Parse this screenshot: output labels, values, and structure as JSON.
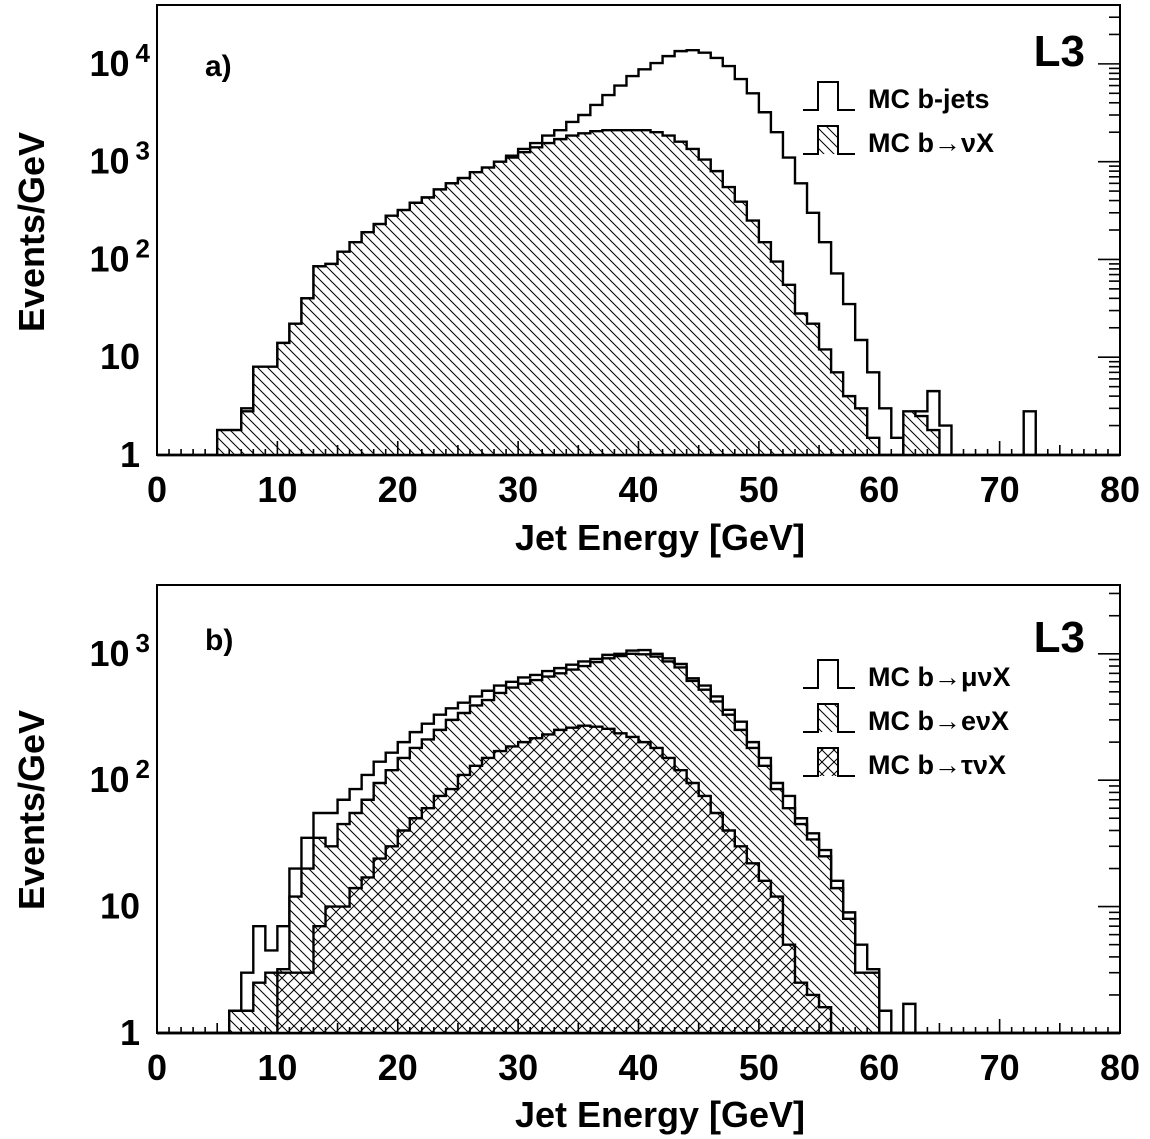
{
  "chart_data": [
    {
      "type": "histogram",
      "panel_label": "a)",
      "logo": "L3",
      "xlabel": "Jet Energy [GeV]",
      "ylabel": "Events/GeV",
      "xlim": [
        0,
        80
      ],
      "ylim": [
        1,
        40000
      ],
      "yscale": "log",
      "x_ticks": [
        0,
        10,
        20,
        30,
        40,
        50,
        60,
        70,
        80
      ],
      "y_ticks": [
        {
          "value": 1,
          "base": "1",
          "exp": ""
        },
        {
          "value": 10,
          "base": "10",
          "exp": ""
        },
        {
          "value": 100,
          "base": "10",
          "exp": "2"
        },
        {
          "value": 1000,
          "base": "10",
          "exp": "3"
        },
        {
          "value": 10000,
          "base": "10",
          "exp": "4"
        }
      ],
      "legend_position": "top-right",
      "bin_edges_start": 0,
      "bin_width": 1,
      "series": [
        {
          "name": "MC b-jets",
          "fill": "none",
          "values": [
            0,
            0,
            0,
            0,
            0,
            1.8,
            1.8,
            3,
            8,
            8,
            14,
            22,
            40,
            85,
            90,
            120,
            150,
            190,
            230,
            280,
            320,
            380,
            430,
            520,
            600,
            680,
            780,
            870,
            1000,
            1150,
            1350,
            1550,
            1850,
            2100,
            2550,
            3000,
            3800,
            4800,
            6000,
            7500,
            8800,
            10200,
            12000,
            13500,
            13800,
            13000,
            11500,
            9500,
            7000,
            5000,
            3200,
            2000,
            1100,
            600,
            300,
            150,
            72,
            35,
            15,
            7,
            3,
            1.5,
            0,
            2.8,
            4.5,
            2,
            0,
            0,
            0,
            0,
            0,
            0,
            2.8,
            0,
            0,
            0,
            0,
            0,
            0,
            0
          ]
        },
        {
          "name": "MC b→νX",
          "fill": "hatch",
          "values": [
            0,
            0,
            0,
            0,
            0,
            1.8,
            1.8,
            2.8,
            8,
            8,
            14,
            22,
            40,
            85,
            90,
            120,
            150,
            190,
            230,
            280,
            320,
            380,
            430,
            520,
            600,
            680,
            780,
            870,
            1000,
            1100,
            1250,
            1400,
            1550,
            1700,
            1850,
            1950,
            2050,
            2100,
            2100,
            2100,
            2100,
            2000,
            1850,
            1600,
            1350,
            1050,
            800,
            550,
            390,
            250,
            150,
            95,
            55,
            28,
            22,
            12,
            7,
            4,
            3,
            1.5,
            0,
            0,
            2.8,
            2.5,
            1.8,
            0,
            0,
            0,
            0,
            0,
            0,
            0,
            0,
            0,
            0,
            0,
            0,
            0,
            0,
            0
          ]
        }
      ]
    },
    {
      "type": "histogram",
      "panel_label": "b)",
      "logo": "L3",
      "xlabel": "Jet Energy [GeV]",
      "ylabel": "Events/GeV",
      "xlim": [
        0,
        80
      ],
      "ylim": [
        1,
        3500
      ],
      "yscale": "log",
      "x_ticks": [
        0,
        10,
        20,
        30,
        40,
        50,
        60,
        70,
        80
      ],
      "y_ticks": [
        {
          "value": 1,
          "base": "1",
          "exp": ""
        },
        {
          "value": 10,
          "base": "10",
          "exp": ""
        },
        {
          "value": 100,
          "base": "10",
          "exp": "2"
        },
        {
          "value": 1000,
          "base": "10",
          "exp": "3"
        }
      ],
      "legend_position": "top-right",
      "bin_edges_start": 0,
      "bin_width": 1,
      "series": [
        {
          "name": "MC b→μνX",
          "fill": "none",
          "values": [
            0,
            0,
            0,
            0,
            0,
            0,
            1.5,
            3,
            7,
            4.5,
            7,
            20,
            35,
            55,
            55,
            70,
            85,
            110,
            140,
            165,
            200,
            240,
            280,
            330,
            370,
            410,
            460,
            510,
            560,
            600,
            650,
            680,
            730,
            770,
            820,
            870,
            910,
            980,
            1000,
            1060,
            1070,
            1000,
            920,
            830,
            640,
            560,
            460,
            360,
            290,
            200,
            150,
            95,
            75,
            50,
            38,
            28,
            16,
            9,
            5,
            3.2,
            1.5,
            1,
            1.7,
            0,
            0,
            0,
            0,
            0,
            0,
            0,
            0,
            0,
            0,
            0,
            0,
            0,
            0,
            0,
            0,
            0
          ]
        },
        {
          "name": "MC b→eνX",
          "fill": "hatch",
          "values": [
            0,
            0,
            0,
            0,
            0,
            0,
            1.5,
            1.5,
            2.5,
            3,
            3.2,
            12,
            20,
            35,
            30,
            45,
            55,
            70,
            95,
            120,
            150,
            180,
            210,
            250,
            300,
            340,
            390,
            430,
            490,
            540,
            580,
            620,
            660,
            700,
            750,
            800,
            860,
            920,
            960,
            1000,
            990,
            950,
            870,
            780,
            610,
            520,
            420,
            330,
            250,
            180,
            130,
            85,
            60,
            45,
            34,
            25,
            14,
            8,
            3,
            3,
            0,
            0,
            0,
            0,
            0,
            0,
            0,
            0,
            0,
            0,
            0,
            0,
            0,
            0,
            0,
            0,
            0,
            0,
            0,
            0
          ]
        },
        {
          "name": "MC b→τνX",
          "fill": "crosshatch",
          "values": [
            0,
            0,
            0,
            0,
            0,
            0,
            0,
            0,
            0,
            0,
            3,
            3,
            3,
            7,
            10,
            10,
            14,
            17,
            24,
            30,
            40,
            50,
            60,
            75,
            85,
            110,
            130,
            150,
            170,
            185,
            200,
            215,
            230,
            250,
            260,
            270,
            265,
            255,
            235,
            220,
            200,
            180,
            150,
            120,
            95,
            75,
            55,
            40,
            30,
            22,
            16,
            12,
            5,
            2.5,
            2,
            1.6,
            0,
            0,
            0,
            0,
            0,
            0,
            0,
            0,
            0,
            0,
            0,
            0,
            0,
            0,
            0,
            0,
            0,
            0,
            0,
            0,
            0,
            0,
            0,
            0
          ]
        }
      ]
    }
  ]
}
